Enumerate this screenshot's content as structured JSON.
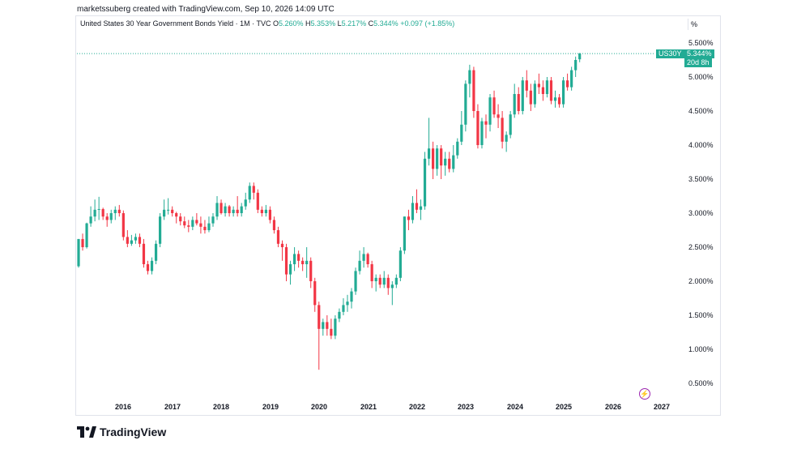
{
  "header": {
    "attribution": "marketssuberg created with TradingView.com, Sep 10, 2026 14:09 UTC"
  },
  "legend": {
    "title": "United States 30 Year Government Bonds Yield · 1M · TVC",
    "o_label": "O",
    "o_value": "5.260%",
    "h_label": "H",
    "h_value": "5.353%",
    "l_label": "L",
    "l_value": "5.217%",
    "c_label": "C",
    "c_value": "5.344%",
    "change": "+0.097 (+1.85%)"
  },
  "scale_button": "%",
  "price_tag": {
    "symbol": "US30Y",
    "value": "5.344%",
    "countdown": "20d 8h"
  },
  "brand": {
    "name": "TradingView"
  },
  "colors": {
    "up": "#22ab94",
    "down": "#f23645",
    "accent": "#22ab94"
  },
  "chart_data": {
    "type": "candlestick",
    "interval": "1M",
    "ylim": [
      0.25,
      5.75
    ],
    "y_ticks": [
      "0.500%",
      "1.000%",
      "1.500%",
      "2.000%",
      "2.500%",
      "3.000%",
      "3.500%",
      "4.000%",
      "4.500%",
      "5.000%",
      "5.500%"
    ],
    "y_tick_values": [
      0.5,
      1.0,
      1.5,
      2.0,
      2.5,
      3.0,
      3.5,
      4.0,
      4.5,
      5.0,
      5.5
    ],
    "x_ticks": [
      "2016",
      "2017",
      "2018",
      "2019",
      "2020",
      "2021",
      "2022",
      "2023",
      "2024",
      "2025",
      "2026",
      "2027"
    ],
    "last_price": 5.344,
    "candles": [
      [
        2.22,
        2.62,
        2.2,
        2.62
      ],
      [
        2.62,
        2.7,
        2.45,
        2.5
      ],
      [
        2.5,
        2.86,
        2.48,
        2.85
      ],
      [
        2.85,
        3.1,
        2.8,
        2.95
      ],
      [
        2.95,
        3.2,
        2.88,
        3.05
      ],
      [
        3.05,
        3.24,
        2.9,
        3.06
      ],
      [
        3.06,
        3.08,
        2.9,
        2.95
      ],
      [
        2.95,
        3.0,
        2.8,
        2.9
      ],
      [
        2.9,
        3.05,
        2.85,
        3.0
      ],
      [
        3.0,
        3.1,
        2.9,
        3.05
      ],
      [
        3.05,
        3.12,
        2.95,
        3.0
      ],
      [
        3.0,
        3.04,
        2.6,
        2.65
      ],
      [
        2.65,
        2.75,
        2.5,
        2.55
      ],
      [
        2.55,
        2.68,
        2.52,
        2.6
      ],
      [
        2.6,
        2.7,
        2.55,
        2.65
      ],
      [
        2.65,
        2.7,
        2.5,
        2.55
      ],
      [
        2.55,
        2.62,
        2.2,
        2.25
      ],
      [
        2.25,
        2.3,
        2.1,
        2.15
      ],
      [
        2.15,
        2.35,
        2.1,
        2.3
      ],
      [
        2.3,
        2.6,
        2.25,
        2.55
      ],
      [
        2.55,
        3.0,
        2.5,
        2.95
      ],
      [
        2.95,
        3.2,
        2.9,
        3.05
      ],
      [
        3.05,
        3.22,
        2.98,
        3.05
      ],
      [
        3.05,
        3.1,
        2.95,
        3.0
      ],
      [
        3.0,
        3.02,
        2.85,
        2.95
      ],
      [
        2.95,
        3.0,
        2.82,
        2.88
      ],
      [
        2.88,
        2.95,
        2.78,
        2.82
      ],
      [
        2.82,
        2.9,
        2.72,
        2.8
      ],
      [
        2.8,
        2.95,
        2.75,
        2.9
      ],
      [
        2.9,
        3.0,
        2.82,
        2.85
      ],
      [
        2.85,
        2.95,
        2.7,
        2.8
      ],
      [
        2.8,
        2.9,
        2.7,
        2.75
      ],
      [
        2.75,
        2.95,
        2.72,
        2.85
      ],
      [
        2.85,
        3.0,
        2.8,
        2.95
      ],
      [
        2.95,
        3.25,
        2.9,
        3.15
      ],
      [
        3.15,
        3.2,
        2.98,
        3.0
      ],
      [
        3.0,
        3.15,
        2.95,
        3.1
      ],
      [
        3.1,
        3.12,
        2.95,
        3.0
      ],
      [
        3.0,
        3.1,
        2.95,
        3.05
      ],
      [
        3.05,
        3.25,
        2.95,
        3.0
      ],
      [
        3.0,
        3.15,
        2.95,
        3.1
      ],
      [
        3.1,
        3.3,
        3.05,
        3.2
      ],
      [
        3.2,
        3.45,
        3.15,
        3.4
      ],
      [
        3.4,
        3.45,
        3.2,
        3.3
      ],
      [
        3.3,
        3.35,
        3.0,
        3.05
      ],
      [
        3.05,
        3.1,
        2.95,
        3.0
      ],
      [
        3.0,
        3.12,
        2.95,
        3.05
      ],
      [
        3.05,
        3.1,
        2.85,
        2.9
      ],
      [
        2.9,
        2.95,
        2.7,
        2.75
      ],
      [
        2.75,
        2.8,
        2.5,
        2.55
      ],
      [
        2.55,
        2.6,
        2.3,
        2.5
      ],
      [
        2.5,
        2.55,
        2.0,
        2.1
      ],
      [
        2.1,
        2.3,
        1.95,
        2.25
      ],
      [
        2.25,
        2.5,
        2.15,
        2.4
      ],
      [
        2.4,
        2.45,
        2.2,
        2.3
      ],
      [
        2.3,
        2.35,
        2.15,
        2.25
      ],
      [
        2.25,
        2.5,
        2.05,
        2.3
      ],
      [
        2.3,
        2.35,
        1.9,
        2.0
      ],
      [
        2.0,
        2.05,
        1.55,
        1.65
      ],
      [
        1.65,
        1.7,
        0.7,
        1.3
      ],
      [
        1.3,
        1.45,
        1.2,
        1.4
      ],
      [
        1.4,
        1.5,
        1.2,
        1.3
      ],
      [
        1.3,
        1.45,
        1.15,
        1.2
      ],
      [
        1.2,
        1.5,
        1.15,
        1.45
      ],
      [
        1.45,
        1.6,
        1.4,
        1.55
      ],
      [
        1.55,
        1.75,
        1.5,
        1.65
      ],
      [
        1.65,
        1.8,
        1.55,
        1.7
      ],
      [
        1.7,
        1.9,
        1.6,
        1.85
      ],
      [
        1.85,
        2.2,
        1.8,
        2.15
      ],
      [
        2.15,
        2.45,
        2.1,
        2.3
      ],
      [
        2.3,
        2.5,
        2.2,
        2.4
      ],
      [
        2.4,
        2.42,
        2.2,
        2.25
      ],
      [
        2.25,
        2.3,
        1.9,
        2.0
      ],
      [
        2.0,
        2.1,
        1.85,
        2.05
      ],
      [
        2.05,
        2.1,
        1.9,
        1.95
      ],
      [
        1.95,
        2.15,
        1.9,
        2.05
      ],
      [
        2.05,
        2.1,
        1.8,
        1.9
      ],
      [
        1.9,
        2.0,
        1.65,
        1.95
      ],
      [
        1.95,
        2.1,
        1.9,
        2.05
      ],
      [
        2.05,
        2.5,
        2.0,
        2.45
      ],
      [
        2.45,
        2.95,
        2.4,
        2.95
      ],
      [
        2.95,
        3.05,
        2.75,
        2.9
      ],
      [
        2.9,
        3.25,
        2.85,
        3.15
      ],
      [
        3.15,
        3.35,
        3.0,
        3.05
      ],
      [
        3.05,
        3.2,
        2.9,
        3.1
      ],
      [
        3.1,
        3.9,
        3.05,
        3.8
      ],
      [
        3.8,
        4.4,
        3.7,
        3.95
      ],
      [
        3.95,
        4.05,
        3.5,
        3.65
      ],
      [
        3.65,
        4.0,
        3.55,
        3.95
      ],
      [
        3.95,
        4.0,
        3.5,
        3.7
      ],
      [
        3.7,
        3.9,
        3.55,
        3.8
      ],
      [
        3.8,
        3.9,
        3.6,
        3.65
      ],
      [
        3.65,
        4.0,
        3.6,
        3.85
      ],
      [
        3.85,
        4.1,
        3.8,
        4.05
      ],
      [
        4.05,
        4.5,
        4.0,
        4.3
      ],
      [
        4.3,
        4.95,
        4.2,
        4.9
      ],
      [
        4.9,
        5.18,
        4.7,
        5.1
      ],
      [
        5.1,
        5.15,
        4.4,
        4.5
      ],
      [
        4.5,
        4.6,
        3.95,
        4.0
      ],
      [
        4.0,
        4.4,
        3.95,
        4.35
      ],
      [
        4.35,
        4.45,
        4.1,
        4.3
      ],
      [
        4.3,
        4.75,
        4.2,
        4.7
      ],
      [
        4.7,
        4.8,
        4.4,
        4.45
      ],
      [
        4.45,
        4.6,
        4.25,
        4.4
      ],
      [
        4.4,
        4.5,
        3.95,
        4.05
      ],
      [
        4.05,
        4.2,
        3.9,
        4.15
      ],
      [
        4.15,
        4.5,
        4.1,
        4.45
      ],
      [
        4.45,
        4.9,
        4.4,
        4.75
      ],
      [
        4.75,
        4.85,
        4.45,
        4.5
      ],
      [
        4.5,
        5.0,
        4.45,
        4.95
      ],
      [
        4.95,
        5.1,
        4.7,
        4.8
      ],
      [
        4.8,
        4.9,
        4.5,
        4.6
      ],
      [
        4.6,
        4.95,
        4.55,
        4.9
      ],
      [
        4.9,
        5.05,
        4.75,
        4.85
      ],
      [
        4.85,
        4.95,
        4.65,
        4.75
      ],
      [
        4.75,
        5.0,
        4.7,
        4.95
      ],
      [
        4.95,
        5.0,
        4.6,
        4.65
      ],
      [
        4.65,
        4.8,
        4.55,
        4.7
      ],
      [
        4.7,
        4.75,
        4.55,
        4.6
      ],
      [
        4.6,
        5.0,
        4.55,
        4.95
      ],
      [
        4.95,
        5.05,
        4.8,
        4.85
      ],
      [
        4.85,
        5.15,
        4.8,
        5.1
      ],
      [
        5.1,
        5.3,
        5.0,
        5.25
      ],
      [
        5.26,
        5.353,
        5.217,
        5.344
      ]
    ]
  }
}
